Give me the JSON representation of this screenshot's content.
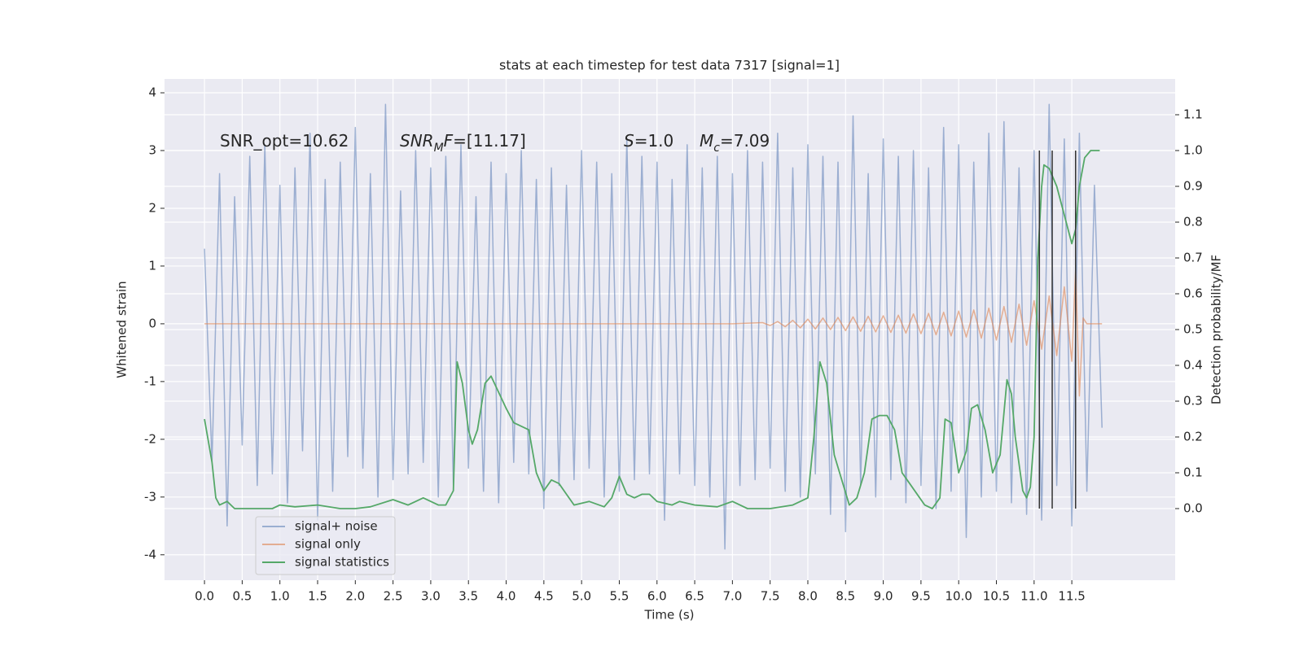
{
  "chart_data": {
    "type": "line",
    "title": "stats at each timestep for test data 7317 [signal=1]",
    "x_label": "Time (s)",
    "y_label": "Whitened strain",
    "y2_label": "Detection probability/MF",
    "xlim": [
      -0.53,
      12.87
    ],
    "ylim": [
      -4.44,
      4.24
    ],
    "y2lim": [
      -0.2,
      1.2
    ],
    "xticks": [
      {
        "value": 0,
        "label": "0.0"
      },
      0.5,
      {
        "value": 1,
        "label": "1.0"
      },
      1.5,
      {
        "value": 2,
        "label": "2.0"
      },
      2.5,
      {
        "value": 3,
        "label": "3.0"
      },
      3.5,
      {
        "value": 4,
        "label": "4.0"
      },
      4.5,
      {
        "value": 5,
        "label": "5.0"
      },
      5.5,
      {
        "value": 6,
        "label": "6.0"
      },
      6.5,
      {
        "value": 7,
        "label": "7.0"
      },
      7.5,
      {
        "value": 8,
        "label": "8.0"
      },
      8.5,
      {
        "value": 9,
        "label": "9.0"
      },
      9.5,
      {
        "value": 10,
        "label": "10.0"
      },
      10.5,
      {
        "value": 11,
        "label": "11.0"
      },
      11.5
    ],
    "yticks": [
      -4,
      -3,
      -2,
      -1,
      0,
      1,
      2,
      3,
      4
    ],
    "y2ticks": [
      {
        "value": 0,
        "label": "0.0"
      },
      0.1,
      0.2,
      0.3,
      0.4,
      0.5,
      0.6,
      0.7,
      0.8,
      0.9,
      {
        "value": 1,
        "label": "1.0"
      },
      1.1
    ],
    "grid": true,
    "legend": "lower left",
    "series": [
      {
        "name": "signal+ noise",
        "color": "#4c72b0",
        "opacity": 0.5,
        "x": [
          0.0,
          0.1,
          0.2,
          0.3,
          0.4,
          0.5,
          0.6,
          0.7,
          0.8,
          0.9,
          1.0,
          1.1,
          1.2,
          1.3,
          1.4,
          1.5,
          1.6,
          1.7,
          1.8,
          1.9,
          2.0,
          2.1,
          2.2,
          2.3,
          2.4,
          2.5,
          2.6,
          2.7,
          2.8,
          2.9,
          3.0,
          3.1,
          3.2,
          3.3,
          3.4,
          3.5,
          3.6,
          3.7,
          3.8,
          3.9,
          4.0,
          4.1,
          4.2,
          4.3,
          4.4,
          4.5,
          4.6,
          4.7,
          4.8,
          4.9,
          5.0,
          5.1,
          5.2,
          5.3,
          5.4,
          5.5,
          5.6,
          5.7,
          5.8,
          5.9,
          6.0,
          6.1,
          6.2,
          6.3,
          6.4,
          6.5,
          6.6,
          6.7,
          6.8,
          6.9,
          7.0,
          7.1,
          7.2,
          7.3,
          7.4,
          7.5,
          7.6,
          7.7,
          7.8,
          7.9,
          8.0,
          8.1,
          8.2,
          8.3,
          8.4,
          8.5,
          8.6,
          8.7,
          8.8,
          8.9,
          9.0,
          9.1,
          9.2,
          9.3,
          9.4,
          9.5,
          9.6,
          9.7,
          9.8,
          9.9,
          10.0,
          10.1,
          10.2,
          10.3,
          10.4,
          10.5,
          10.6,
          10.7,
          10.8,
          10.9,
          11.0,
          11.1,
          11.2,
          11.3,
          11.4,
          11.5,
          11.6,
          11.7,
          11.8,
          11.9
        ],
        "values": [
          1.3,
          -2.4,
          2.6,
          -3.5,
          2.2,
          -2.1,
          2.9,
          -2.8,
          3.1,
          -2.6,
          2.4,
          -3.1,
          2.7,
          -2.2,
          3.3,
          -3.4,
          2.5,
          -2.9,
          2.8,
          -2.3,
          3.4,
          -2.5,
          2.6,
          -3.0,
          3.8,
          -2.7,
          2.3,
          -2.6,
          3.0,
          -2.4,
          2.7,
          -3.0,
          2.9,
          -2.8,
          3.1,
          -2.5,
          2.2,
          -2.9,
          2.8,
          -3.1,
          2.6,
          -2.4,
          3.0,
          -2.6,
          2.5,
          -3.2,
          2.7,
          -2.8,
          2.4,
          -2.7,
          3.0,
          -2.5,
          2.8,
          -3.0,
          2.6,
          -2.9,
          3.2,
          -2.7,
          2.9,
          -2.6,
          2.8,
          -3.4,
          2.5,
          -2.6,
          3.1,
          -2.8,
          2.7,
          -3.0,
          2.9,
          -3.9,
          2.6,
          -2.8,
          3.0,
          -2.7,
          2.8,
          -2.5,
          3.3,
          -2.9,
          2.7,
          -3.0,
          3.1,
          -2.6,
          2.9,
          -3.3,
          2.8,
          -3.6,
          3.6,
          -2.8,
          2.6,
          -3.0,
          3.2,
          -2.7,
          2.9,
          -3.1,
          3.0,
          -2.8,
          2.7,
          -3.2,
          3.4,
          -2.9,
          3.1,
          -3.7,
          2.8,
          -3.0,
          3.3,
          -2.9,
          3.5,
          -3.1,
          2.7,
          -3.3,
          3.0,
          -3.4,
          3.8,
          -2.8,
          3.2,
          -3.5,
          3.3,
          -2.9,
          2.4,
          -1.8
        ]
      },
      {
        "name": "signal only",
        "color": "#dd8452",
        "opacity": 0.6,
        "x": [
          0,
          7.0,
          7.4,
          7.5,
          7.6,
          7.7,
          7.8,
          7.9,
          8.0,
          8.1,
          8.2,
          8.3,
          8.4,
          8.5,
          8.6,
          8.7,
          8.8,
          8.9,
          9.0,
          9.1,
          9.2,
          9.3,
          9.4,
          9.5,
          9.6,
          9.7,
          9.8,
          9.9,
          10.0,
          10.1,
          10.2,
          10.3,
          10.4,
          10.5,
          10.6,
          10.7,
          10.8,
          10.9,
          11.0,
          11.1,
          11.2,
          11.3,
          11.4,
          11.5,
          11.55,
          11.6,
          11.65,
          11.7,
          11.9
        ],
        "values": [
          0,
          0,
          0.02,
          -0.03,
          0.04,
          -0.05,
          0.06,
          -0.07,
          0.08,
          -0.09,
          0.1,
          -0.1,
          0.11,
          -0.12,
          0.12,
          -0.13,
          0.13,
          -0.14,
          0.14,
          -0.15,
          0.15,
          -0.16,
          0.17,
          -0.17,
          0.18,
          -0.19,
          0.2,
          -0.21,
          0.22,
          -0.23,
          0.24,
          -0.25,
          0.27,
          -0.28,
          0.3,
          -0.32,
          0.34,
          -0.37,
          0.4,
          -0.44,
          0.48,
          -0.55,
          0.64,
          -0.65,
          0.95,
          -1.25,
          0.1,
          0,
          0
        ]
      },
      {
        "name": "signal statistics",
        "color": "#55a868",
        "opacity": 1,
        "axis": "y2",
        "x": [
          0,
          0.1,
          0.15,
          0.2,
          0.3,
          0.4,
          0.5,
          0.7,
          0.9,
          1.0,
          1.2,
          1.5,
          1.8,
          2.0,
          2.2,
          2.5,
          2.7,
          2.9,
          3.1,
          3.2,
          3.3,
          3.35,
          3.42,
          3.5,
          3.55,
          3.62,
          3.72,
          3.8,
          4.0,
          4.1,
          4.2,
          4.3,
          4.4,
          4.5,
          4.6,
          4.7,
          4.8,
          4.9,
          5.1,
          5.3,
          5.4,
          5.5,
          5.6,
          5.7,
          5.8,
          5.9,
          6.0,
          6.2,
          6.3,
          6.5,
          6.8,
          7.0,
          7.2,
          7.5,
          7.8,
          8.0,
          8.08,
          8.16,
          8.25,
          8.35,
          8.55,
          8.65,
          8.75,
          8.85,
          8.95,
          9.05,
          9.15,
          9.25,
          9.35,
          9.55,
          9.65,
          9.75,
          9.82,
          9.9,
          10.0,
          10.1,
          10.17,
          10.25,
          10.35,
          10.45,
          10.55,
          10.64,
          10.7,
          10.75,
          10.85,
          10.9,
          10.95,
          11.0,
          11.05,
          11.1,
          11.13,
          11.2,
          11.3,
          11.4,
          11.5,
          11.55,
          11.6,
          11.67,
          11.75,
          11.87
        ],
        "values": [
          0.25,
          0.13,
          0.03,
          0.01,
          0.02,
          0.0,
          0.0,
          0.0,
          0.0,
          0.01,
          0.005,
          0.01,
          0.0,
          0.0,
          0.005,
          0.025,
          0.01,
          0.03,
          0.01,
          0.01,
          0.05,
          0.41,
          0.35,
          0.22,
          0.18,
          0.22,
          0.35,
          0.37,
          0.28,
          0.24,
          0.23,
          0.22,
          0.1,
          0.05,
          0.08,
          0.07,
          0.04,
          0.01,
          0.02,
          0.005,
          0.03,
          0.09,
          0.04,
          0.03,
          0.04,
          0.04,
          0.02,
          0.01,
          0.02,
          0.01,
          0.005,
          0.02,
          0.0,
          0.0,
          0.01,
          0.03,
          0.2,
          0.41,
          0.35,
          0.15,
          0.01,
          0.03,
          0.1,
          0.25,
          0.26,
          0.26,
          0.22,
          0.1,
          0.07,
          0.01,
          0.0,
          0.03,
          0.25,
          0.24,
          0.1,
          0.16,
          0.28,
          0.29,
          0.22,
          0.1,
          0.15,
          0.36,
          0.32,
          0.2,
          0.05,
          0.03,
          0.06,
          0.2,
          0.7,
          0.9,
          0.96,
          0.95,
          0.9,
          0.82,
          0.74,
          0.78,
          0.9,
          0.98,
          1.0,
          1.0
        ]
      }
    ],
    "vlines": {
      "x": [
        11.07,
        11.24,
        11.55
      ],
      "color": "#333333"
    },
    "annotations": [
      [
        {
          "t": "SNR_opt=10.62"
        }
      ],
      [
        {
          "t": "SNR",
          "italic": true
        },
        {
          "t": "M",
          "italic": true,
          "sub": true
        },
        {
          "t": "F",
          "italic": true
        },
        {
          "t": "=[11.17]"
        }
      ],
      [
        {
          "t": "S",
          "italic": true
        },
        {
          "t": "=1.0"
        }
      ],
      [
        {
          "t": "M",
          "italic": true
        },
        {
          "t": "c",
          "italic": true,
          "sub": true
        },
        {
          "t": "=7.09"
        }
      ]
    ]
  }
}
